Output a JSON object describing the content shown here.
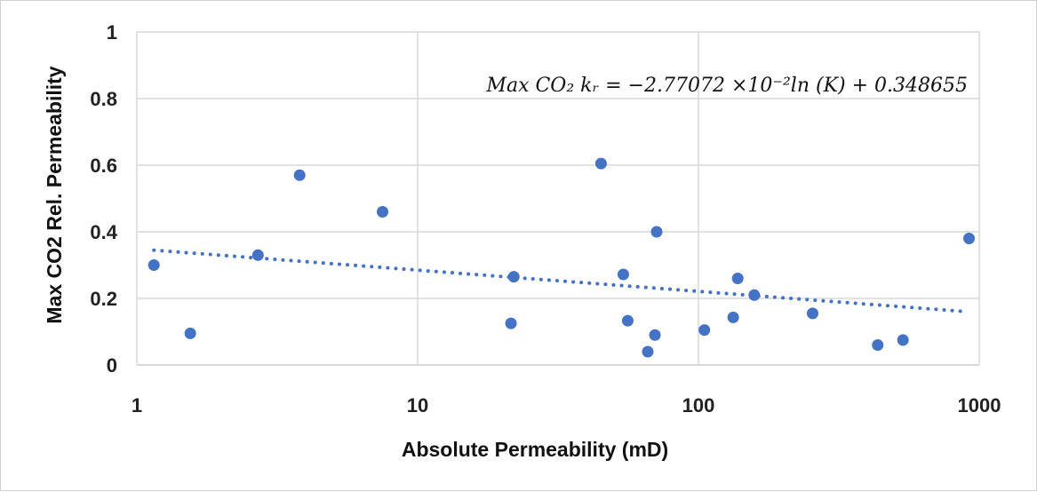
{
  "chart_data": {
    "type": "scatter",
    "xlabel": "Absolute Permeability (mD)",
    "ylabel": "Max CO2 Rel. Permeability",
    "x_scale": "log",
    "xlim": [
      1,
      1000
    ],
    "ylim": [
      0,
      1
    ],
    "x_ticks": [
      "1",
      "10",
      "100",
      "1000"
    ],
    "y_ticks": [
      "0",
      "0.2",
      "0.4",
      "0.6",
      "0.8",
      "1"
    ],
    "grid": true,
    "marker_color": "#4472C4",
    "trendline": {
      "type": "logarithmic",
      "style": "dotted",
      "slope": -0.0277072,
      "intercept": 0.348655,
      "x_range": [
        1.15,
        900
      ],
      "equation_text": "Max CO₂ kᵣ = −2.77072 ×10⁻²ln (K) + 0.348655"
    },
    "series": [
      {
        "points": [
          {
            "x": 1.15,
            "y": 0.3
          },
          {
            "x": 1.55,
            "y": 0.095
          },
          {
            "x": 2.7,
            "y": 0.33
          },
          {
            "x": 3.8,
            "y": 0.57
          },
          {
            "x": 7.5,
            "y": 0.46
          },
          {
            "x": 21.5,
            "y": 0.125
          },
          {
            "x": 22,
            "y": 0.265
          },
          {
            "x": 45,
            "y": 0.605
          },
          {
            "x": 54,
            "y": 0.272
          },
          {
            "x": 56,
            "y": 0.133
          },
          {
            "x": 66,
            "y": 0.04
          },
          {
            "x": 70,
            "y": 0.09
          },
          {
            "x": 71,
            "y": 0.4
          },
          {
            "x": 105,
            "y": 0.105
          },
          {
            "x": 133,
            "y": 0.143
          },
          {
            "x": 138,
            "y": 0.26
          },
          {
            "x": 158,
            "y": 0.21
          },
          {
            "x": 255,
            "y": 0.155
          },
          {
            "x": 435,
            "y": 0.06
          },
          {
            "x": 535,
            "y": 0.075
          },
          {
            "x": 920,
            "y": 0.38
          }
        ]
      }
    ]
  }
}
